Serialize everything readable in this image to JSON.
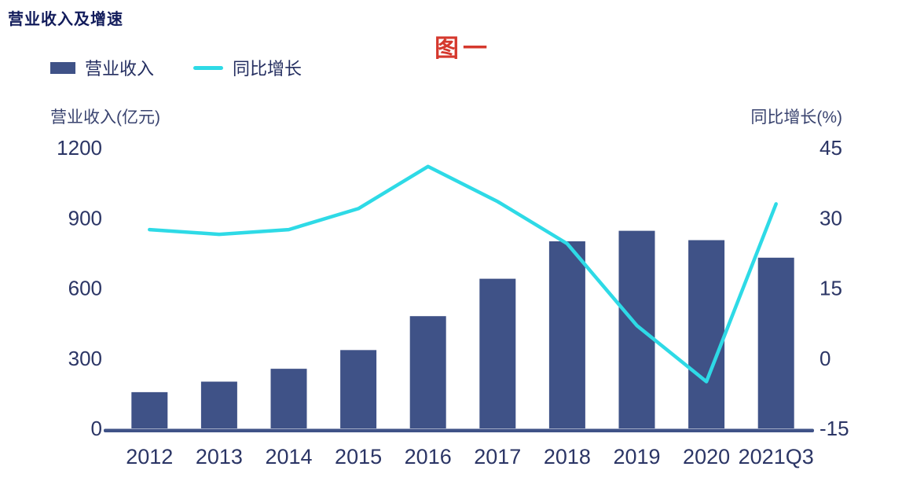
{
  "title": "营业收入及增速",
  "figure_label": "图一",
  "legend": {
    "items": [
      {
        "label": "营业收入",
        "type": "bar",
        "color": "#3F5287"
      },
      {
        "label": "同比增长",
        "type": "line",
        "color": "#2EDAE6"
      }
    ]
  },
  "axes": {
    "left_title": "营业收入(亿元)",
    "right_title": "同比增长(%)"
  },
  "colors": {
    "bar": "#3F5287",
    "line": "#2EDAE6",
    "tick_text": "#2B3565",
    "x_label_text": "#2B3565",
    "axis_line": "#3F5287",
    "background": "#FFFFFF",
    "title_text": "#121C5B",
    "figure_label_text": "#D5382D"
  },
  "chart_data": {
    "type": "bar",
    "title": "营业收入及增速",
    "categories": [
      "2012",
      "2013",
      "2014",
      "2015",
      "2016",
      "2017",
      "2018",
      "2019",
      "2020",
      "2021Q3"
    ],
    "series": [
      {
        "name": "营业收入",
        "type": "bar",
        "axis": "left",
        "color": "#3F5287",
        "values": [
          155,
          200,
          255,
          335,
          480,
          640,
          800,
          845,
          805,
          730
        ]
      },
      {
        "name": "同比增长",
        "type": "line",
        "axis": "right",
        "color": "#2EDAE6",
        "values": [
          27.5,
          26.5,
          27.5,
          32,
          41,
          33.5,
          24.5,
          7,
          -5,
          33
        ]
      }
    ],
    "left_axis": {
      "title": "营业收入(亿元)",
      "min": 0,
      "max": 1200,
      "ticks": [
        1200,
        900,
        600,
        300,
        0
      ]
    },
    "right_axis": {
      "title": "同比增长(%)",
      "min": -15,
      "max": 45,
      "ticks": [
        45,
        30,
        15,
        0,
        -15
      ]
    },
    "grid": false,
    "legend_position": "top-left"
  }
}
